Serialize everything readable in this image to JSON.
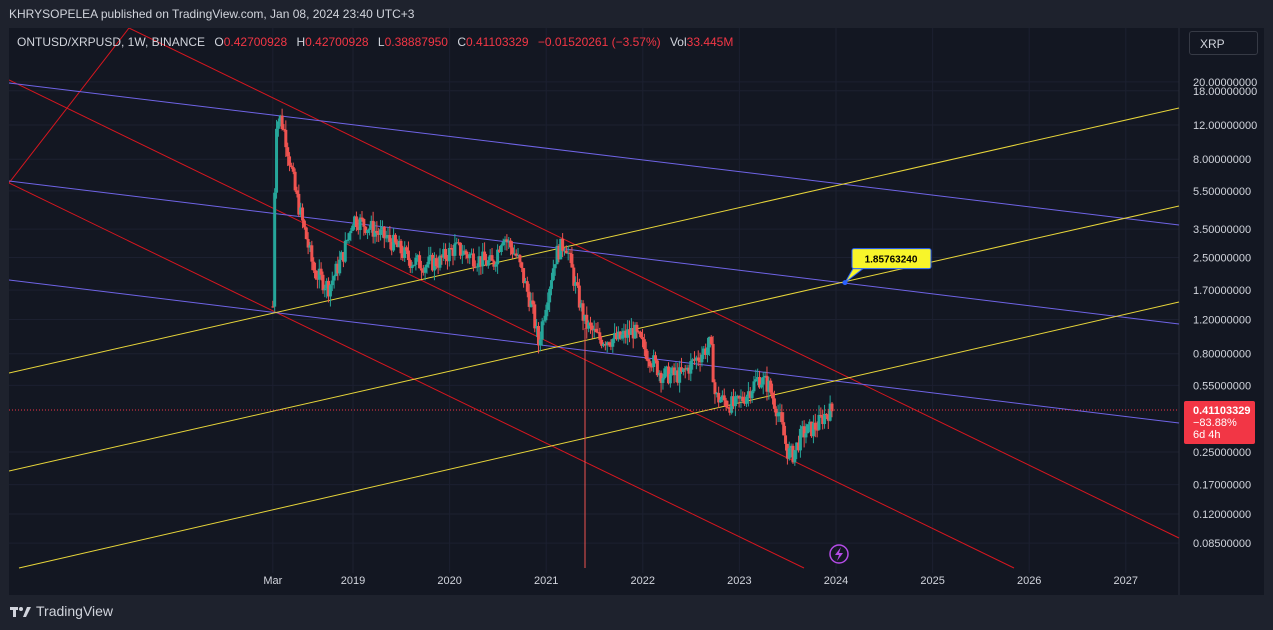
{
  "header": {
    "publish_line": "KHRYSOPELEA published on TradingView.com, Jan 08, 2024 23:40 UTC+3"
  },
  "legend": {
    "symbol": "ONTUSD/XRPUSD, 1W, BINANCE",
    "o_label": "O",
    "o_value": "0.42700928",
    "h_label": "H",
    "h_value": "0.42700928",
    "l_label": "L",
    "l_value": "0.38887950",
    "c_label": "C",
    "c_value": "0.41103329",
    "change": "−0.01520261 (−3.57%)",
    "vol_label": "Vol",
    "vol_value": "33.445M"
  },
  "toolbar": {
    "currency_button": "XRP"
  },
  "price_tag": {
    "price": "0.41103329",
    "pct": "−83.88%",
    "countdown": "6d 4h"
  },
  "callout": {
    "text": "1.85763240"
  },
  "footer": {
    "brand": "TradingView"
  },
  "colors": {
    "background": "#131722",
    "grid": "#1c2030",
    "candle_up": "#26a69a",
    "candle_down": "#ef5350",
    "red_lines": "#d6161f",
    "blue_lines": "#6f64e6",
    "yellow_lines": "#e8d63a",
    "price_tag": "#f23645",
    "callout_bg": "#f8f52a"
  },
  "chart_data": {
    "type": "candlestick",
    "scale": "log",
    "ylim": [
      0.07,
      25
    ],
    "y_tick_labels": [
      "20.00000000",
      "18.00000000",
      "12.00000000",
      "8.00000000",
      "5.50000000",
      "3.50000000",
      "2.50000000",
      "1.70000000",
      "1.20000000",
      "0.80000000",
      "0.55000000",
      "0.25000000",
      "0.17000000",
      "0.12000000",
      "0.08500000"
    ],
    "x_tick_labels": [
      "Mar",
      "2019",
      "2020",
      "2021",
      "2022",
      "2023",
      "2024",
      "2025",
      "2026",
      "2027"
    ],
    "last_price": 0.41103329,
    "annotated_level": 1.8576324,
    "series": [
      {
        "name": "ONTUSD/XRPUSD",
        "approx_path": [
          [
            2018.17,
            1.4
          ],
          [
            2018.2,
            12.5
          ],
          [
            2018.25,
            13.0
          ],
          [
            2018.3,
            10.5
          ],
          [
            2018.4,
            5.5
          ],
          [
            2018.5,
            3.4
          ],
          [
            2018.6,
            2.1
          ],
          [
            2018.75,
            1.75
          ],
          [
            2018.9,
            2.6
          ],
          [
            2019.0,
            4.0
          ],
          [
            2019.2,
            3.5
          ],
          [
            2019.4,
            3.0
          ],
          [
            2019.6,
            2.4
          ],
          [
            2019.75,
            2.3
          ],
          [
            2019.9,
            2.4
          ],
          [
            2020.05,
            2.8
          ],
          [
            2020.25,
            2.5
          ],
          [
            2020.45,
            2.3
          ],
          [
            2020.55,
            3.3
          ],
          [
            2020.7,
            2.5
          ],
          [
            2020.85,
            1.4
          ],
          [
            2020.92,
            0.9
          ],
          [
            2021.0,
            1.5
          ],
          [
            2021.1,
            2.6
          ],
          [
            2021.2,
            3.0
          ],
          [
            2021.3,
            1.8
          ],
          [
            2021.4,
            1.15
          ],
          [
            2021.55,
            0.95
          ],
          [
            2021.75,
            0.95
          ],
          [
            2021.9,
            1.05
          ],
          [
            2022.05,
            0.8
          ],
          [
            2022.2,
            0.62
          ],
          [
            2022.4,
            0.62
          ],
          [
            2022.55,
            0.75
          ],
          [
            2022.7,
            0.9
          ],
          [
            2022.75,
            0.48
          ],
          [
            2022.95,
            0.43
          ],
          [
            2023.05,
            0.48
          ],
          [
            2023.2,
            0.6
          ],
          [
            2023.3,
            0.55
          ],
          [
            2023.4,
            0.4
          ],
          [
            2023.5,
            0.25
          ],
          [
            2023.55,
            0.24
          ],
          [
            2023.65,
            0.31
          ],
          [
            2023.8,
            0.34
          ],
          [
            2023.9,
            0.4
          ],
          [
            2023.97,
            0.41
          ]
        ]
      }
    ],
    "drawings": {
      "red_channel_lines": 4,
      "blue_parallel_lines": 3,
      "yellow_parallel_lines": 3
    }
  }
}
